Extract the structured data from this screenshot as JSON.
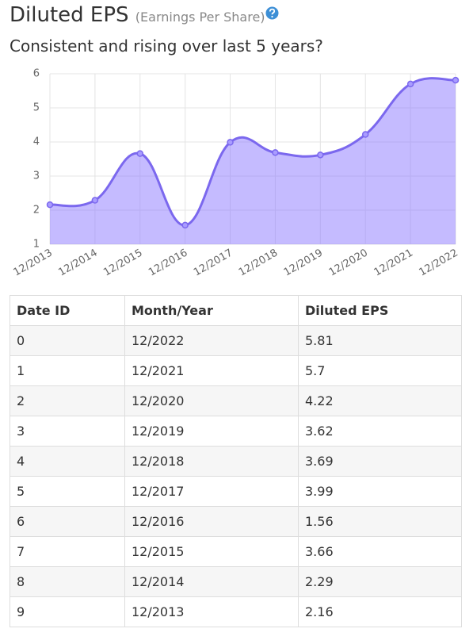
{
  "header": {
    "title": "Diluted EPS",
    "subtitle_note": "(Earnings Per Share)",
    "question": "Consistent and rising over last 5 years?"
  },
  "chart_data": {
    "type": "area",
    "categories": [
      "12/2013",
      "12/2014",
      "12/2015",
      "12/2016",
      "12/2017",
      "12/2018",
      "12/2019",
      "12/2020",
      "12/2021",
      "12/2022"
    ],
    "values": [
      2.16,
      2.29,
      3.66,
      1.56,
      3.99,
      3.69,
      3.62,
      4.22,
      5.7,
      5.81
    ],
    "color": "#7b68ee",
    "fill": "rgba(140,120,255,0.5)",
    "ylim": [
      1,
      6
    ],
    "yticks": [
      1,
      2,
      3,
      4,
      5,
      6
    ],
    "grid": true
  },
  "table": {
    "columns": [
      "Date ID",
      "Month/Year",
      "Diluted EPS"
    ],
    "rows": [
      [
        "0",
        "12/2022",
        "5.81"
      ],
      [
        "1",
        "12/2021",
        "5.7"
      ],
      [
        "2",
        "12/2020",
        "4.22"
      ],
      [
        "3",
        "12/2019",
        "3.62"
      ],
      [
        "4",
        "12/2018",
        "3.69"
      ],
      [
        "5",
        "12/2017",
        "3.99"
      ],
      [
        "6",
        "12/2016",
        "1.56"
      ],
      [
        "7",
        "12/2015",
        "3.66"
      ],
      [
        "8",
        "12/2014",
        "2.29"
      ],
      [
        "9",
        "12/2013",
        "2.16"
      ]
    ]
  }
}
